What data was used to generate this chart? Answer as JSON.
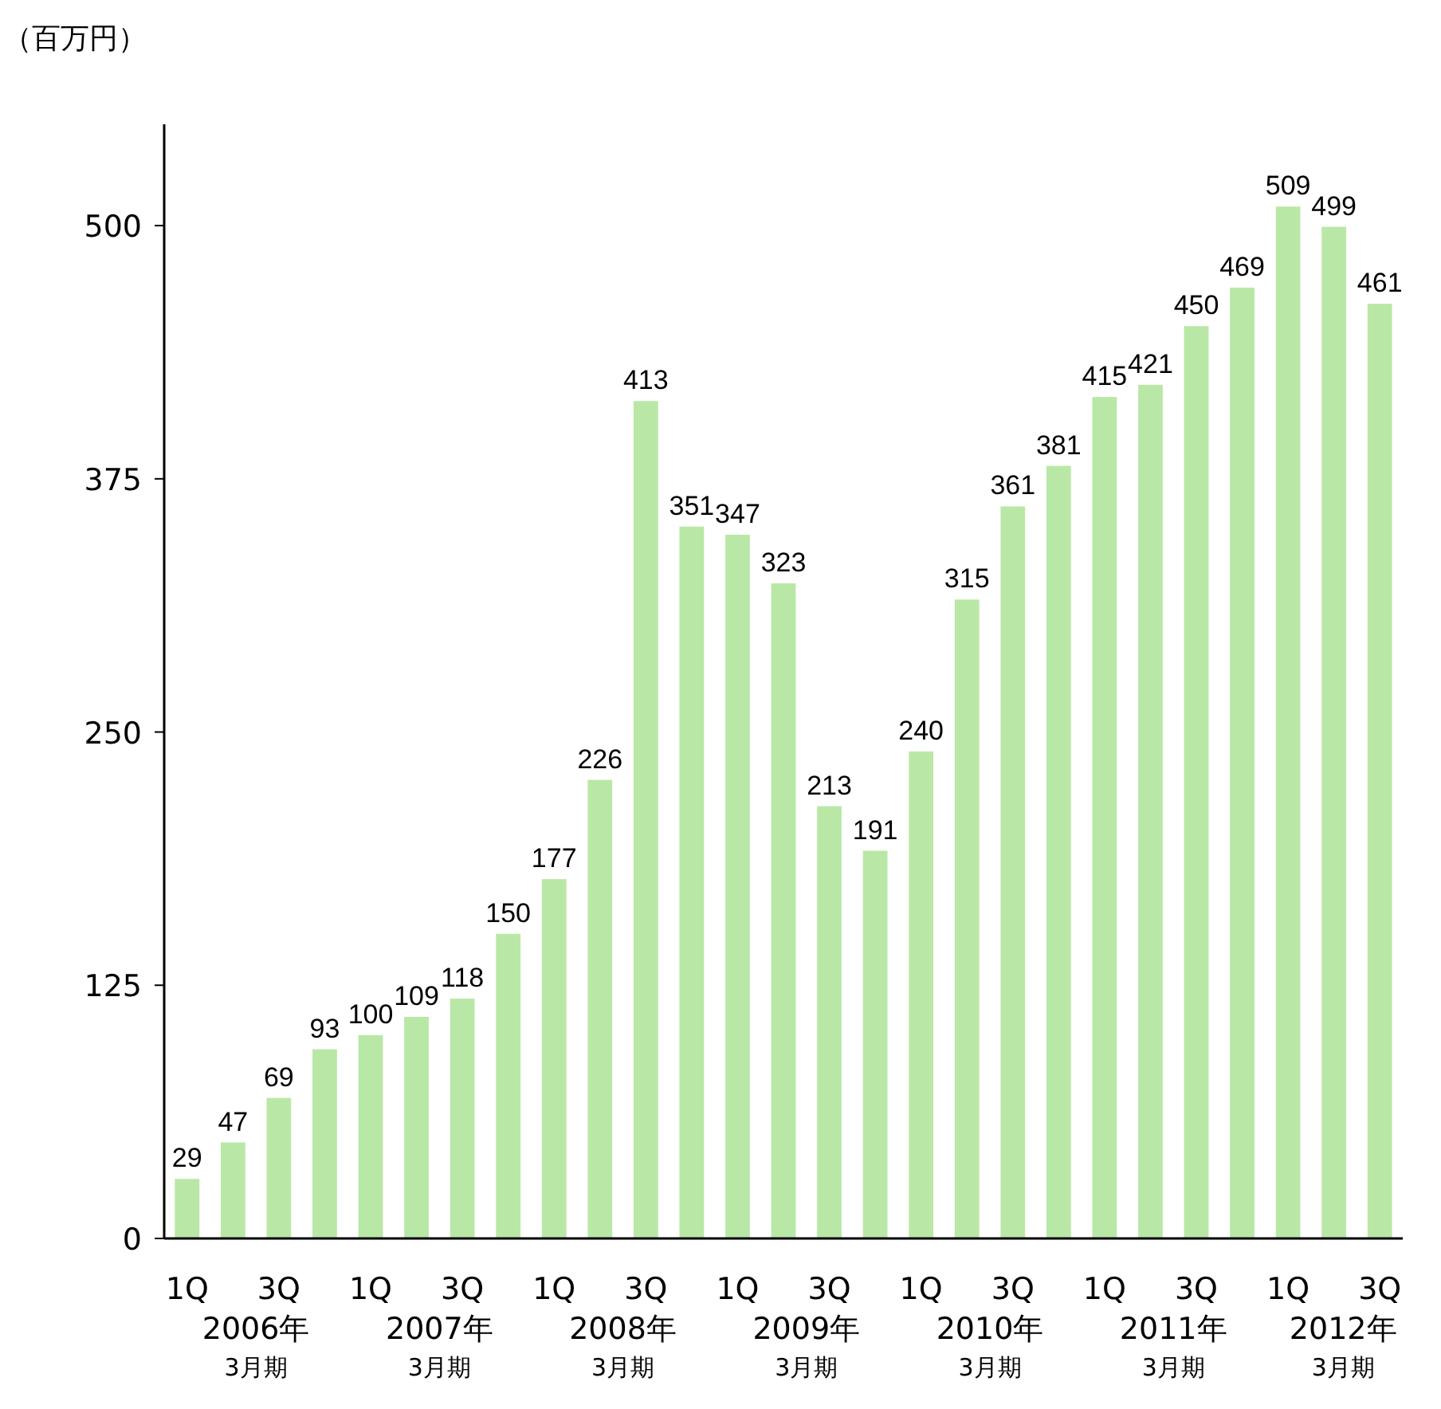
{
  "chart_data": {
    "type": "bar",
    "ylabel": "（百万円）",
    "categories": [
      "1Q",
      null,
      "3Q",
      null,
      "1Q",
      null,
      "3Q",
      null,
      "1Q",
      null,
      "3Q",
      null,
      "1Q",
      null,
      "3Q",
      null,
      "1Q",
      null,
      "3Q",
      null,
      "1Q",
      null,
      "3Q",
      null,
      "1Q",
      null,
      "3Q"
    ],
    "values": [
      29,
      47,
      69,
      93,
      100,
      109,
      118,
      150,
      177,
      226,
      413,
      351,
      347,
      323,
      213,
      191,
      240,
      315,
      361,
      381,
      415,
      421,
      450,
      469,
      509,
      499,
      461
    ],
    "color": "#b9e8a6",
    "ylim": [
      0,
      550
    ],
    "yticks": [
      0,
      125,
      250,
      375,
      500
    ],
    "data_labels": true,
    "grid": false,
    "annotations": [
      "2006年\n3月期",
      "2007年\n3月期",
      "2008年\n3月期",
      "2009年\n3月期",
      "2010年\n3月期",
      "2011年\n3月期",
      "2012年\n3月期"
    ]
  }
}
